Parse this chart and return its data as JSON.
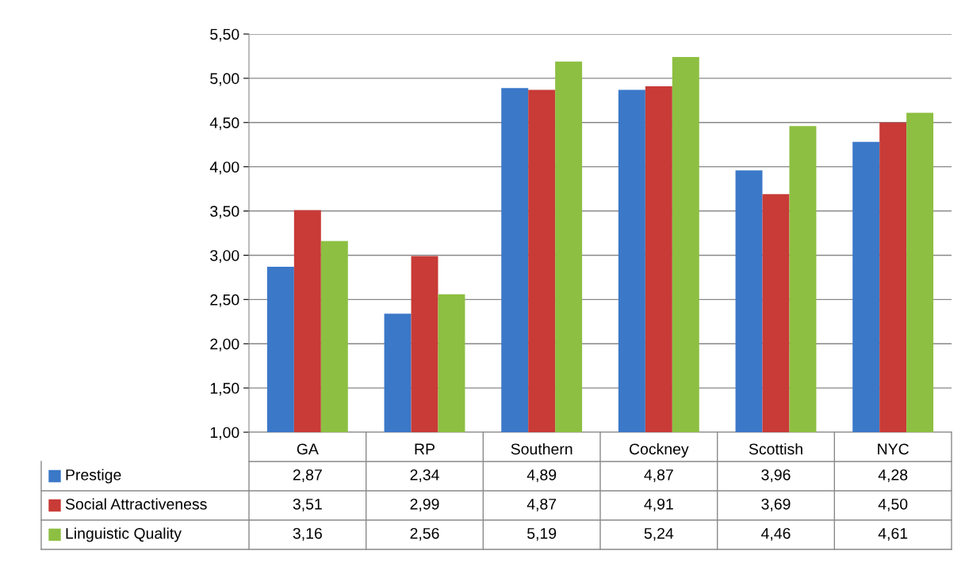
{
  "chart_data": {
    "type": "bar",
    "categories": [
      "GA",
      "RP",
      "Southern",
      "Cockney",
      "Scottish",
      "NYC"
    ],
    "series": [
      {
        "name": "Prestige",
        "color": "#3b78c8",
        "values": [
          2.87,
          2.34,
          4.89,
          4.87,
          3.96,
          4.28
        ],
        "value_labels": [
          "2,87",
          "2,34",
          "4,89",
          "4,87",
          "3,96",
          "4,28"
        ]
      },
      {
        "name": "Social Attractiveness",
        "color": "#c83b37",
        "values": [
          3.51,
          2.99,
          4.87,
          4.91,
          3.69,
          4.5
        ],
        "value_labels": [
          "3,51",
          "2,99",
          "4,87",
          "4,91",
          "3,69",
          "4,50"
        ]
      },
      {
        "name": "Linguistic Quality",
        "color": "#8dbf42",
        "values": [
          3.16,
          2.56,
          5.19,
          5.24,
          4.46,
          4.61
        ],
        "value_labels": [
          "3,16",
          "2,56",
          "5,19",
          "5,24",
          "4,46",
          "4,61"
        ]
      }
    ],
    "ylim": [
      1.0,
      5.5
    ],
    "yticks": [
      {
        "value": 1.0,
        "label": "1,00"
      },
      {
        "value": 1.5,
        "label": "1,50"
      },
      {
        "value": 2.0,
        "label": "2,00"
      },
      {
        "value": 2.5,
        "label": "2,50"
      },
      {
        "value": 3.0,
        "label": "3,00"
      },
      {
        "value": 3.5,
        "label": "3,50"
      },
      {
        "value": 4.0,
        "label": "4,00"
      },
      {
        "value": 4.5,
        "label": "4,50"
      },
      {
        "value": 5.0,
        "label": "5,00"
      },
      {
        "value": 5.5,
        "label": "5,50"
      }
    ],
    "grid": "y",
    "legend": "bottom"
  }
}
